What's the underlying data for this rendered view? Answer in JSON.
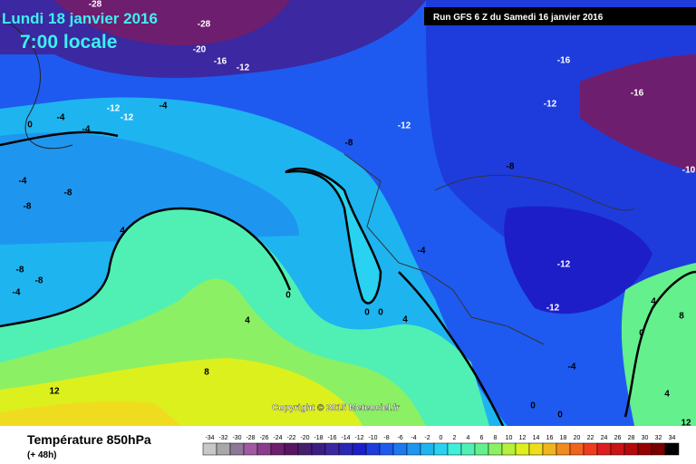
{
  "header": {
    "date": "Lundi 18 janvier 2016",
    "time": "7:00 locale",
    "run": "Run GFS 6 Z du Samedi 16 janvier 2016"
  },
  "copyright": "Copyright © 2015 Meteociel.fr",
  "footer": {
    "title": "Température 850hPa",
    "lead": "(+ 48h)"
  },
  "map_labels": [
    -28,
    -28,
    -20,
    -16,
    -12,
    -16,
    -16,
    -12,
    -12,
    -12,
    -4,
    0,
    -4,
    -4,
    -12,
    -8,
    -8,
    -10,
    -4,
    -8,
    -8,
    4,
    -4,
    -12,
    -8,
    -8,
    -4,
    0,
    -12,
    4,
    8,
    0,
    0,
    4,
    4,
    0,
    8,
    -4,
    12,
    4,
    0,
    0,
    12
  ],
  "scale": {
    "labels": [
      -34,
      -32,
      -30,
      -28,
      -26,
      -24,
      -22,
      -20,
      -18,
      -16,
      -14,
      -12,
      -10,
      -8,
      -6,
      -4,
      -2,
      0,
      2,
      4,
      6,
      8,
      10,
      12,
      14,
      16,
      18,
      20,
      22,
      24,
      26,
      28,
      30,
      32,
      34
    ],
    "colors": [
      "#c8c8c8",
      "#a8a8a8",
      "#8c7896",
      "#a05aa0",
      "#8c3c8c",
      "#6e1e6e",
      "#5a1464",
      "#461e6e",
      "#3c1e82",
      "#3c28a0",
      "#2828b4",
      "#1e1ec8",
      "#1e3cdc",
      "#1e5af0",
      "#1e78f0",
      "#1e96f0",
      "#1eb4f0",
      "#28d2f0",
      "#3cf0dc",
      "#50f0b4",
      "#64f08c",
      "#8cf064",
      "#b4f03c",
      "#dcf01e",
      "#f0dc1e",
      "#f0b41e",
      "#f08c1e",
      "#f0641e",
      "#f03c1e",
      "#dc1e1e",
      "#c81414",
      "#b40a0a",
      "#960000",
      "#780000",
      "#000000"
    ]
  }
}
